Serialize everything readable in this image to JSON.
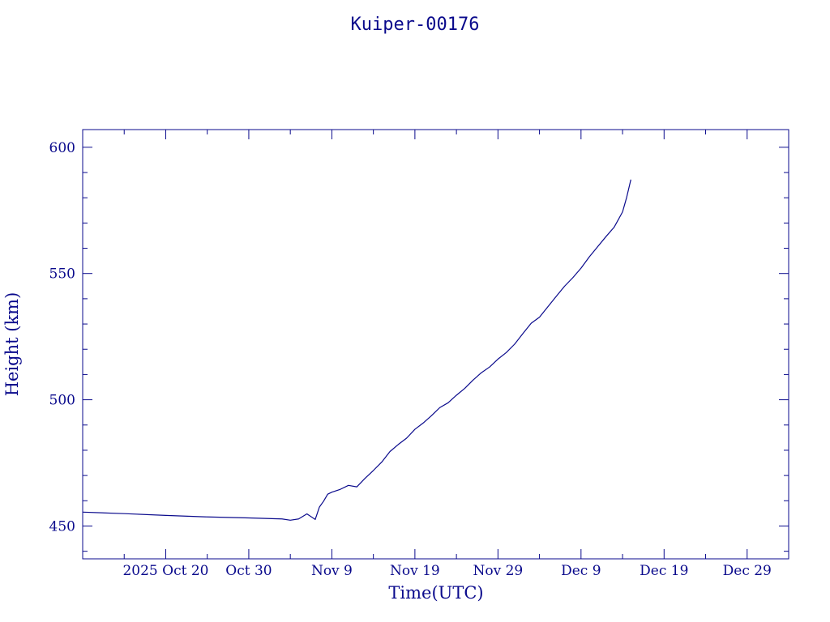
{
  "chart_data": {
    "type": "line",
    "title": "Kuiper-00176",
    "xlabel": "Time(UTC)",
    "ylabel": "Height (km)",
    "color": "#0a0a8c",
    "x_range": [
      "2025-10-10",
      "2026-01-03"
    ],
    "ylim": [
      437,
      607
    ],
    "x_ticks": [
      {
        "date": "2025-10-20",
        "label": "2025 Oct 20"
      },
      {
        "date": "2025-10-30",
        "label": "Oct 30"
      },
      {
        "date": "2025-11-09",
        "label": "Nov  9"
      },
      {
        "date": "2025-11-19",
        "label": "Nov 19"
      },
      {
        "date": "2025-11-29",
        "label": "Nov 29"
      },
      {
        "date": "2025-12-09",
        "label": "Dec  9"
      },
      {
        "date": "2025-12-19",
        "label": "Dec 19"
      },
      {
        "date": "2025-12-29",
        "label": "Dec 29"
      }
    ],
    "y_ticks": [
      {
        "value": 450,
        "label": "450"
      },
      {
        "value": 500,
        "label": "500"
      },
      {
        "value": 550,
        "label": "550"
      },
      {
        "value": 600,
        "label": "600"
      }
    ],
    "grid": false,
    "series": [
      {
        "x": [
          "2025-10-10",
          "2025-10-15",
          "2025-10-20",
          "2025-10-25",
          "2025-10-30",
          "2025-11-03",
          "2025-11-04",
          "2025-11-05",
          "2025-11-06",
          "2025-11-07",
          "2025-11-07T12:00",
          "2025-11-08",
          "2025-11-08T12:00",
          "2025-11-09",
          "2025-11-10",
          "2025-11-11",
          "2025-11-12",
          "2025-11-13",
          "2025-11-14",
          "2025-11-15",
          "2025-11-16",
          "2025-11-17",
          "2025-11-18",
          "2025-11-19",
          "2025-11-20",
          "2025-11-21",
          "2025-11-22",
          "2025-11-23",
          "2025-11-24",
          "2025-11-25",
          "2025-11-26",
          "2025-11-27",
          "2025-11-28",
          "2025-11-29",
          "2025-11-30",
          "2025-12-01",
          "2025-12-02",
          "2025-12-03",
          "2025-12-04",
          "2025-12-05",
          "2025-12-06",
          "2025-12-07",
          "2025-12-08",
          "2025-12-09",
          "2025-12-10",
          "2025-12-11",
          "2025-12-12",
          "2025-12-13",
          "2025-12-14",
          "2025-12-14T12:00",
          "2025-12-15"
        ],
        "y": [
          455.5,
          454.9,
          454.2,
          453.6,
          453.2,
          452.8,
          452.3,
          452.8,
          454.8,
          452.6,
          457.5,
          459.8,
          462.6,
          463.4,
          464.5,
          466.1,
          465.5,
          468.9,
          472.0,
          475.3,
          479.5,
          482.3,
          484.8,
          488.3,
          490.8,
          493.7,
          496.9,
          498.8,
          501.8,
          504.5,
          507.8,
          510.7,
          513.0,
          516.1,
          518.7,
          522.0,
          526.2,
          530.3,
          532.7,
          536.8,
          540.9,
          544.9,
          548.3,
          552.1,
          556.6,
          560.6,
          564.6,
          568.4,
          574.4,
          580.2,
          587.2
        ]
      }
    ]
  }
}
